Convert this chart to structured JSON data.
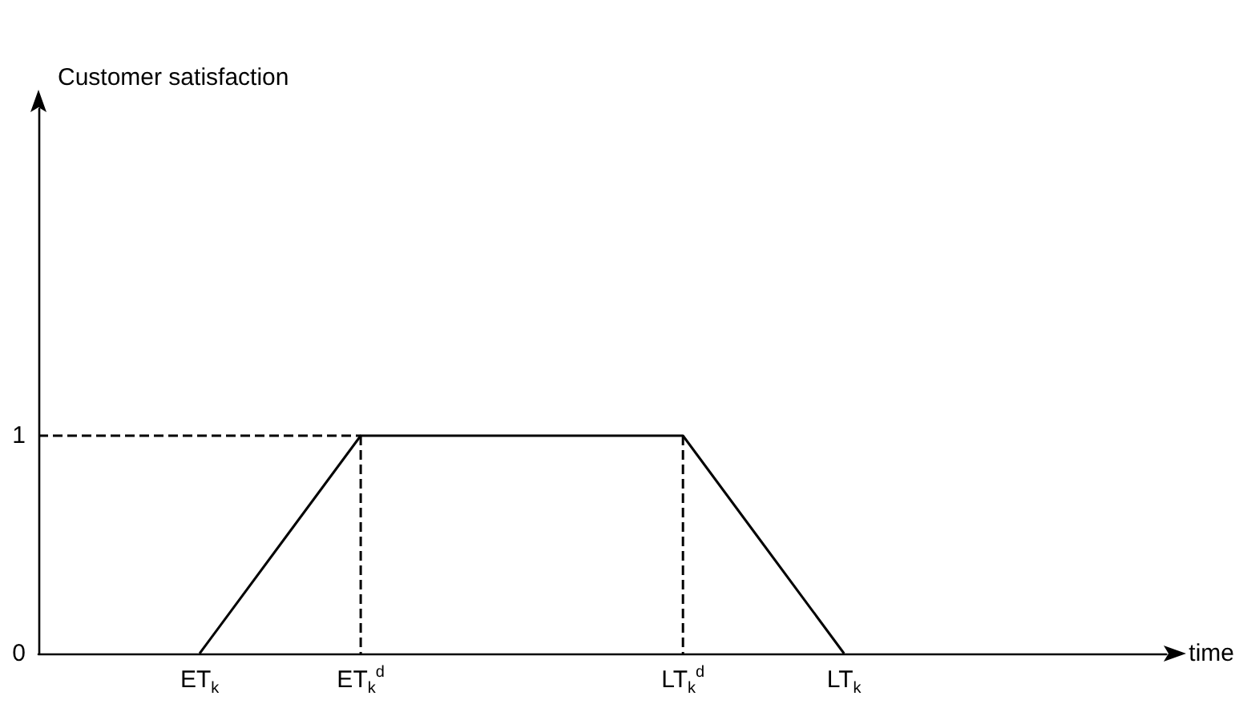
{
  "chart_data": {
    "type": "line",
    "xlabel": "time",
    "ylabel": "Customer satisfaction",
    "categories": [
      null,
      null,
      "ET$_{k}$",
      null,
      "ET$_{k}$$^{d}$",
      null,
      null,
      null,
      "LT$_{k}$$^{d}$",
      null,
      "LT$_{k}$",
      null,
      null,
      null,
      null
    ],
    "ylim": [
      0,
      2.5
    ],
    "yticks": [
      0,
      1
    ],
    "series": [
      {
        "color": "#000000",
        "values": [
          null,
          null,
          0,
          0.5,
          1,
          1,
          1,
          1,
          1,
          0.5,
          0,
          null,
          null,
          null,
          null
        ],
        "line_style": "solid"
      },
      {
        "color": "#000000",
        "values": [
          1,
          1,
          1,
          1,
          1,
          null,
          null,
          null,
          null,
          null,
          null,
          null,
          null,
          null,
          null
        ],
        "line_style": "dashed"
      },
      {
        "color": "#000000",
        "x": [
          "ET$_{k}$$^{d}$",
          "ET$_{k}$$^{d}$"
        ],
        "values": [
          1,
          0
        ],
        "line_style": "dashed"
      },
      {
        "color": "#000000",
        "x": [
          "LT$_{k}$$^{d}$",
          "LT$_{k}$$^{d}$"
        ],
        "values": [
          1,
          0
        ],
        "line_style": "dashed"
      }
    ],
    "grid": false,
    "marker": "none"
  }
}
